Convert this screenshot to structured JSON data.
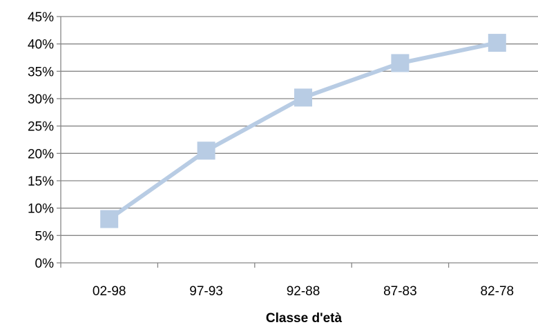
{
  "chart_data": {
    "type": "line",
    "categories": [
      "02-98",
      "97-93",
      "92-88",
      "87-83",
      "82-78"
    ],
    "series": [
      {
        "values": [
          8,
          20.5,
          30.2,
          36.5,
          40.2
        ]
      }
    ],
    "xlabel": "Classe d'età",
    "ylabel": "",
    "ylim": [
      0,
      45
    ],
    "y_ticks": [
      0,
      5,
      10,
      15,
      20,
      25,
      30,
      35,
      40,
      45
    ],
    "y_tick_labels": [
      "0%",
      "5%",
      "10%",
      "15%",
      "20%",
      "25%",
      "30%",
      "35%",
      "40%",
      "45%"
    ],
    "grid": true,
    "legend": "none",
    "colors": {
      "series": "#b8cce4",
      "grid": "#868686",
      "axis": "#868686"
    },
    "marker": "square"
  }
}
